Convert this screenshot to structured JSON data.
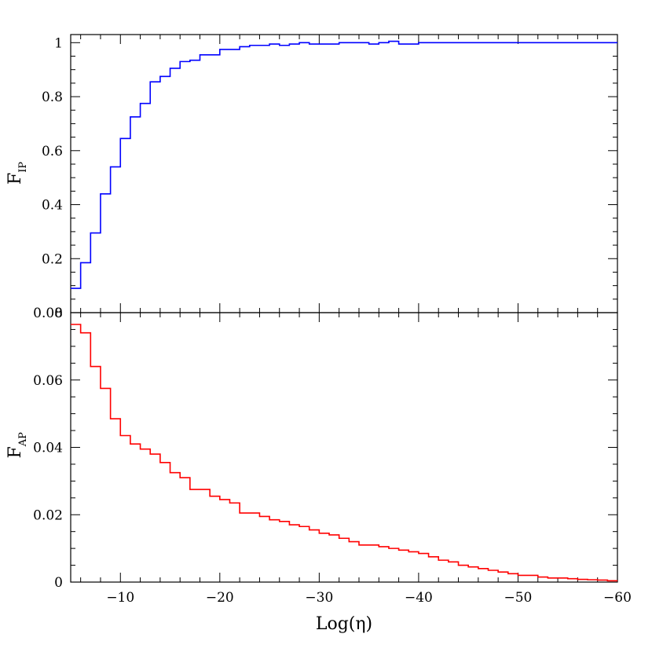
{
  "chart_data": [
    {
      "type": "line",
      "step": true,
      "panel": "top",
      "xlabel": "Log(η)",
      "ylabel": "F",
      "ylabel_sub": "IP",
      "xlim": [
        -5,
        -60
      ],
      "ylim": [
        0,
        1.03
      ],
      "x_ticks": [
        -10,
        -20,
        -30,
        -40,
        -50,
        -60
      ],
      "x_tick_labels": [
        "−10",
        "−20",
        "−30",
        "−40",
        "−50",
        "−60"
      ],
      "y_ticks": [
        0,
        0.2,
        0.4,
        0.6,
        0.8,
        1
      ],
      "y_tick_labels": [
        "0",
        "0.2",
        "0.4",
        "0.6",
        "0.8",
        "1"
      ],
      "grid": false,
      "series": [
        {
          "color": "#0000ff",
          "bin_edges": [
            -5,
            -6,
            -7,
            -8,
            -9,
            -10,
            -11,
            -12,
            -13,
            -14,
            -15,
            -16,
            -17,
            -18,
            -19,
            -20,
            -21,
            -22,
            -23,
            -24,
            -25,
            -26,
            -27,
            -28,
            -29,
            -30,
            -31,
            -32,
            -33,
            -34,
            -35,
            -36,
            -37,
            -38,
            -39,
            -40,
            -41,
            -42,
            -43,
            -44,
            -45,
            -46,
            -47,
            -48,
            -49,
            -50,
            -51,
            -52,
            -53,
            -54,
            -55,
            -56,
            -57,
            -58,
            -59,
            -60
          ],
          "values": [
            0.09,
            0.185,
            0.295,
            0.44,
            0.54,
            0.645,
            0.725,
            0.775,
            0.855,
            0.875,
            0.905,
            0.93,
            0.935,
            0.955,
            0.955,
            0.975,
            0.975,
            0.985,
            0.99,
            0.99,
            0.995,
            0.99,
            0.995,
            1.0,
            0.995,
            0.995,
            0.995,
            1.0,
            1.0,
            1.0,
            0.995,
            1.0,
            1.005,
            0.995,
            0.995,
            1.0,
            1.0,
            1.0,
            1.0,
            1.0,
            1.0,
            1.0,
            1.0,
            1.0,
            1.0,
            1.0,
            1.0,
            1.0,
            1.0,
            1.0,
            1.0,
            1.0,
            1.0,
            1.0,
            1.0
          ]
        }
      ]
    },
    {
      "type": "line",
      "step": true,
      "panel": "bottom",
      "xlabel": "Log(η)",
      "ylabel": "F",
      "ylabel_sub": "AP",
      "xlim": [
        -5,
        -60
      ],
      "ylim": [
        0,
        0.08
      ],
      "x_ticks": [
        -10,
        -20,
        -30,
        -40,
        -50,
        -60
      ],
      "x_tick_labels": [
        "−10",
        "−20",
        "−30",
        "−40",
        "−50",
        "−60"
      ],
      "y_ticks": [
        0,
        0.02,
        0.04,
        0.06,
        0.08
      ],
      "y_tick_labels": [
        "0",
        "0.02",
        "0.04",
        "0.06",
        "0.08"
      ],
      "grid": false,
      "series": [
        {
          "color": "#ff0000",
          "bin_edges": [
            -5,
            -6,
            -7,
            -8,
            -9,
            -10,
            -11,
            -12,
            -13,
            -14,
            -15,
            -16,
            -17,
            -18,
            -19,
            -20,
            -21,
            -22,
            -23,
            -24,
            -25,
            -26,
            -27,
            -28,
            -29,
            -30,
            -31,
            -32,
            -33,
            -34,
            -35,
            -36,
            -37,
            -38,
            -39,
            -40,
            -41,
            -42,
            -43,
            -44,
            -45,
            -46,
            -47,
            -48,
            -49,
            -50,
            -51,
            -52,
            -53,
            -54,
            -55,
            -56,
            -57,
            -58,
            -59,
            -60
          ],
          "values": [
            0.0765,
            0.074,
            0.064,
            0.0575,
            0.0485,
            0.0435,
            0.041,
            0.0395,
            0.038,
            0.0355,
            0.0325,
            0.031,
            0.0275,
            0.0275,
            0.0255,
            0.0245,
            0.0235,
            0.0205,
            0.0205,
            0.0195,
            0.0185,
            0.018,
            0.017,
            0.0165,
            0.0155,
            0.0145,
            0.014,
            0.013,
            0.012,
            0.011,
            0.011,
            0.0105,
            0.01,
            0.0095,
            0.009,
            0.0085,
            0.0075,
            0.0065,
            0.006,
            0.005,
            0.0045,
            0.004,
            0.0035,
            0.003,
            0.0025,
            0.002,
            0.002,
            0.0015,
            0.0012,
            0.0012,
            0.001,
            0.0008,
            0.0007,
            0.0006,
            0.0004
          ]
        }
      ]
    }
  ]
}
